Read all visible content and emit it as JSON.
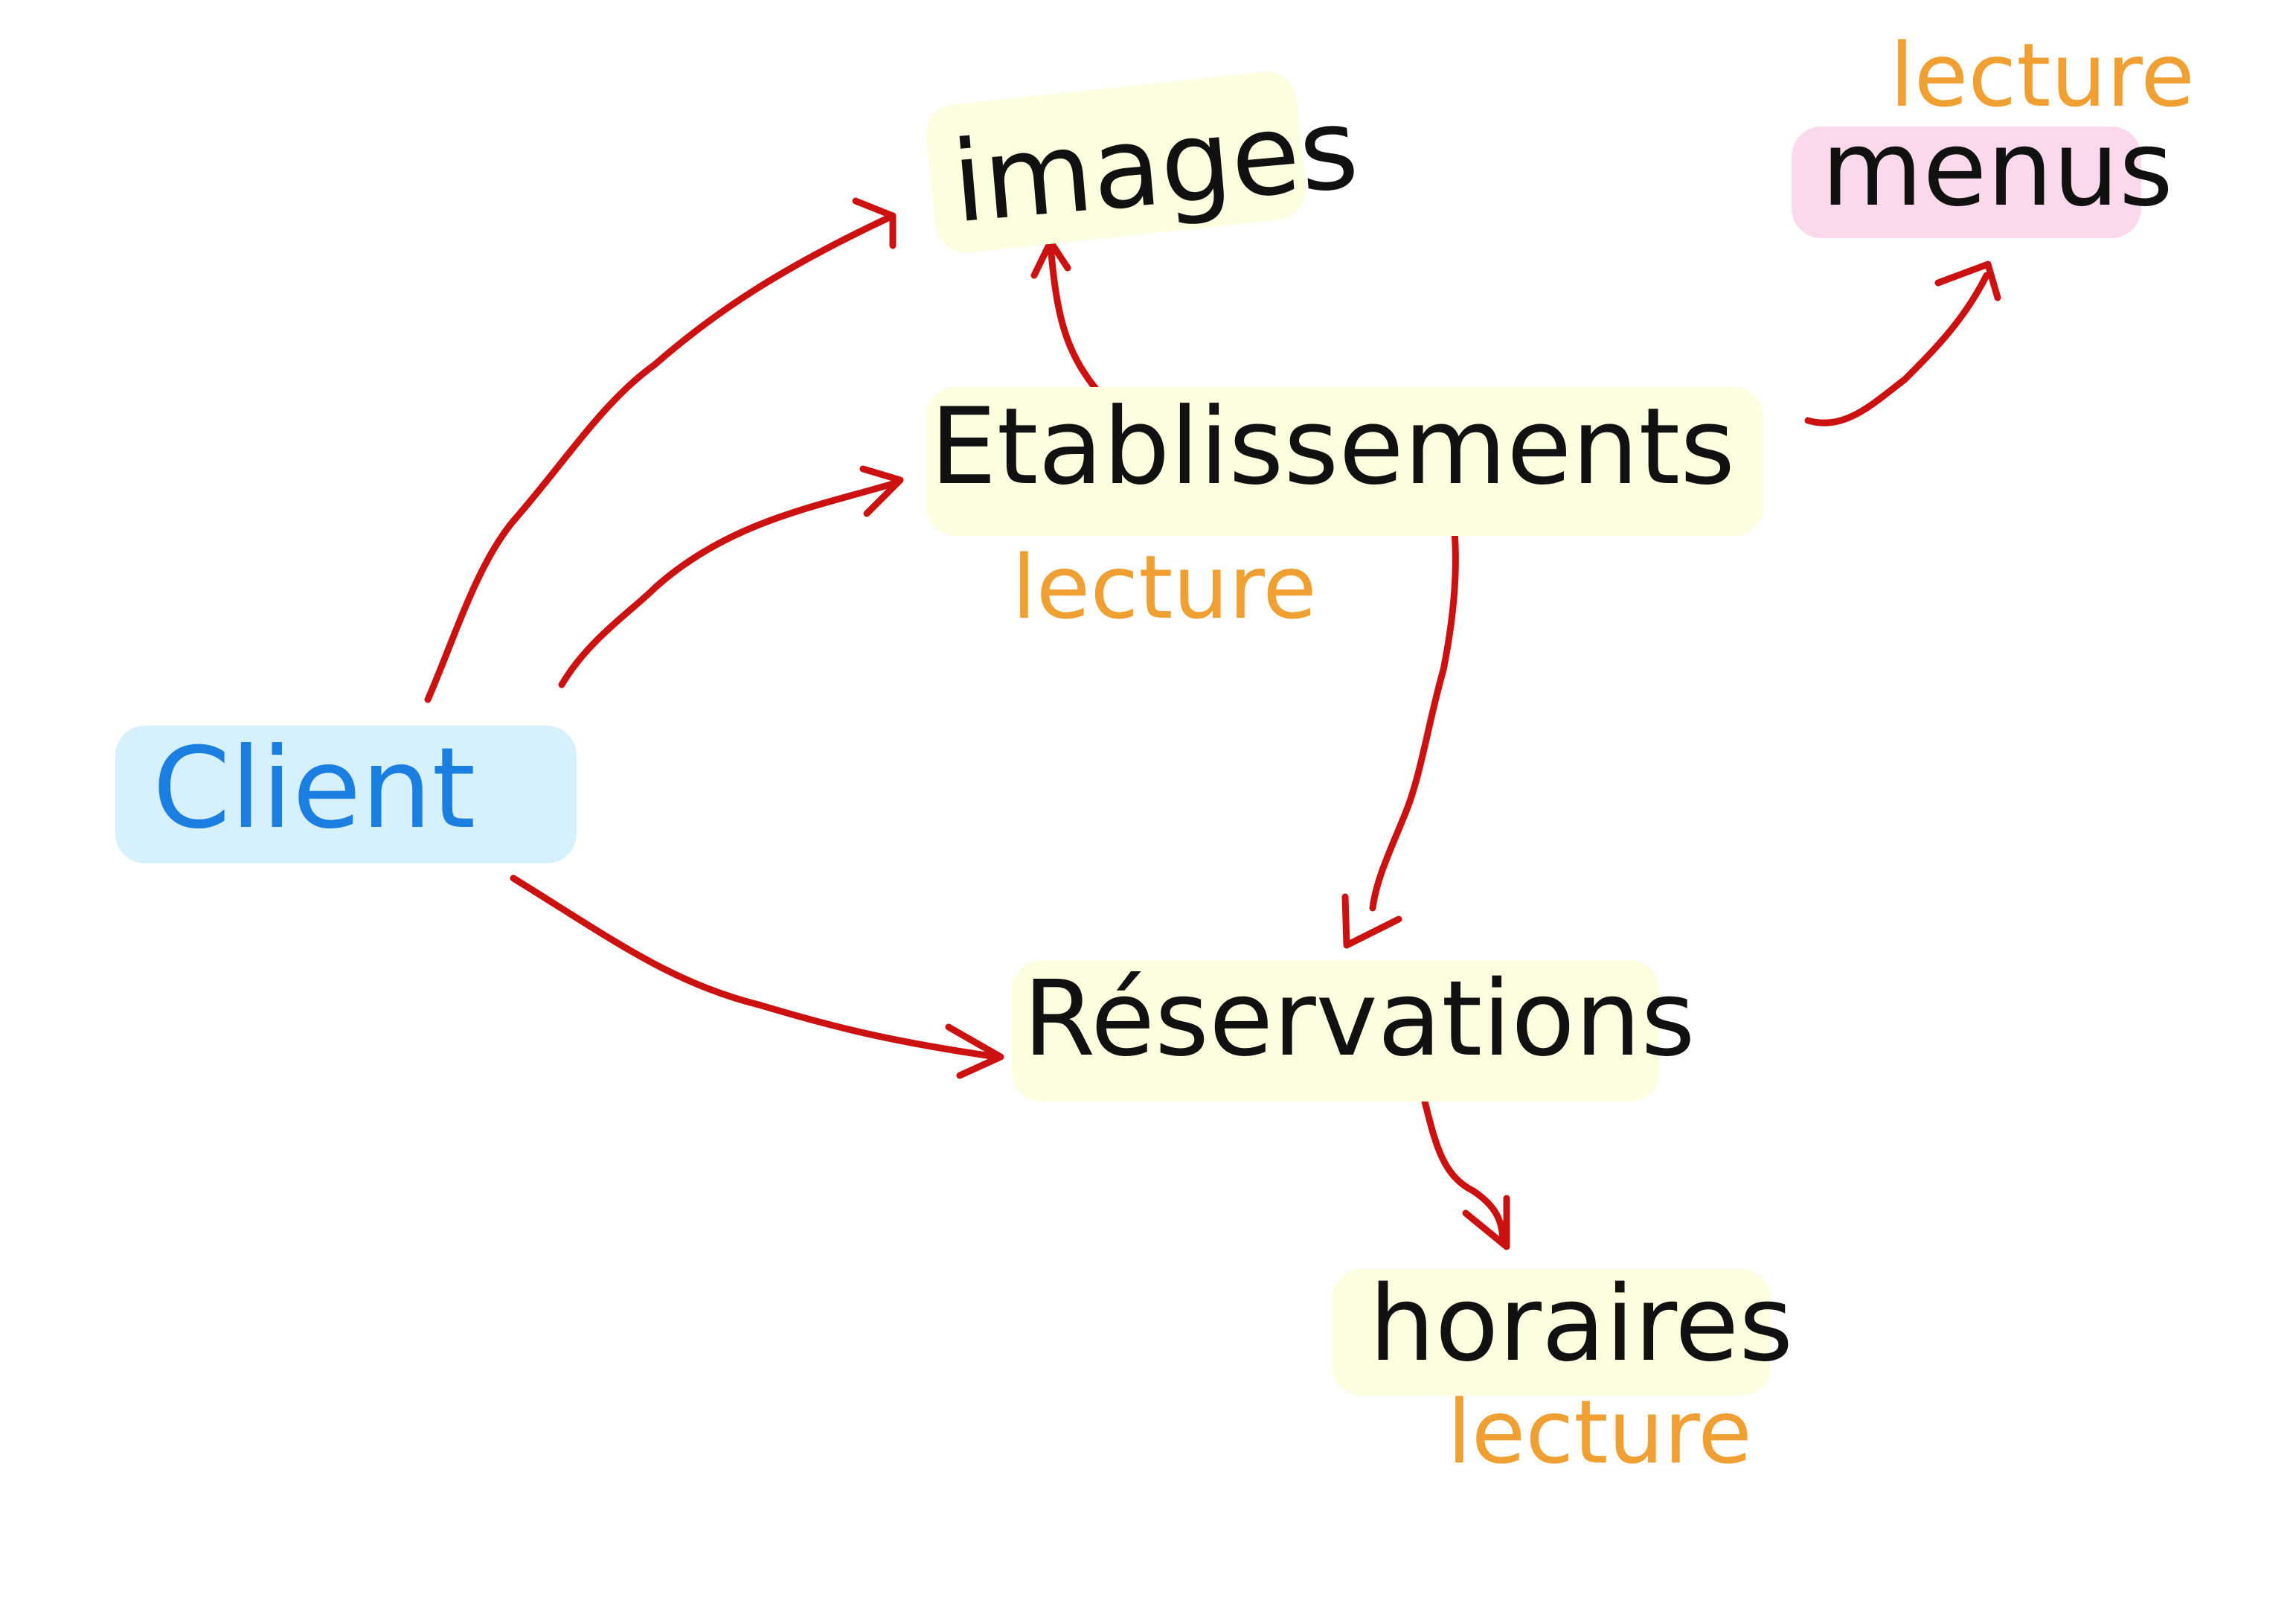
{
  "colors": {
    "arrow": "#cc1111",
    "node_text": "#111111",
    "client_text": "#1a7fe0",
    "tag_text": "#f0a033",
    "highlight_yellow": "#fdfde0",
    "highlight_blue": "#d6f1fb",
    "highlight_pink": "#fbd9ec"
  },
  "nodes": {
    "client": "Client",
    "images": "images",
    "etablissements": "Etablissements",
    "menus": "menus",
    "reservations": "Réservations",
    "horaires": "horaires"
  },
  "tags": {
    "menus": "lecture",
    "etablissements": "lecture",
    "horaires": "lecture"
  },
  "edges": [
    {
      "from": "Client",
      "to": "images"
    },
    {
      "from": "Client",
      "to": "Etablissements"
    },
    {
      "from": "Client",
      "to": "Réservations"
    },
    {
      "from": "Etablissements",
      "to": "images"
    },
    {
      "from": "Etablissements",
      "to": "menus"
    },
    {
      "from": "Etablissements",
      "to": "Réservations"
    },
    {
      "from": "Réservations",
      "to": "horaires"
    }
  ]
}
